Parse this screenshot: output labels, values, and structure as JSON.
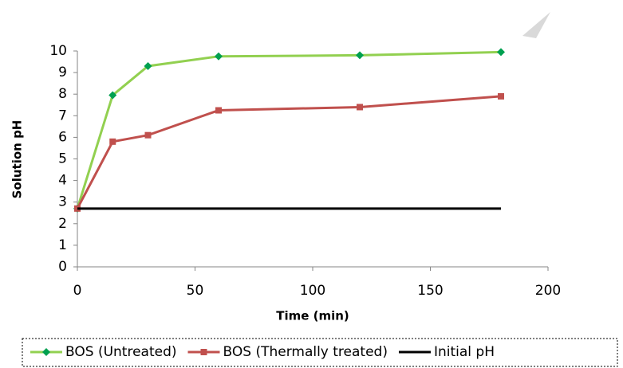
{
  "chart_data": {
    "type": "line",
    "xlabel": "Time (min)",
    "ylabel": "Solution pH",
    "xlim": [
      0,
      200
    ],
    "xticks": [
      0,
      50,
      100,
      150,
      200
    ],
    "ylim": [
      0,
      10
    ],
    "yticks": [
      0,
      1,
      2,
      3,
      4,
      5,
      6,
      7,
      8,
      9,
      10
    ],
    "legend": "bottom",
    "series": [
      {
        "name": "BOS (Untreated)",
        "color": "#92d050",
        "marker": "diamond",
        "marker_color": "#00a050",
        "x": [
          0,
          15,
          30,
          60,
          120,
          180
        ],
        "values": [
          2.7,
          7.95,
          9.3,
          9.75,
          9.8,
          9.95
        ]
      },
      {
        "name": "BOS (Thermally treated)",
        "color": "#c0504d",
        "marker": "square",
        "marker_color": "#c0504d",
        "x": [
          0,
          15,
          30,
          60,
          120,
          180
        ],
        "values": [
          2.7,
          5.8,
          6.1,
          7.25,
          7.4,
          7.9
        ]
      },
      {
        "name": "Initial pH",
        "color": "#000000",
        "x": [
          0,
          180
        ],
        "values": [
          2.7,
          2.7
        ]
      }
    ]
  }
}
